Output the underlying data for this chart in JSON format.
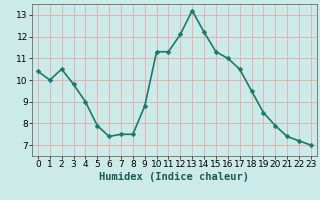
{
  "x": [
    0,
    1,
    2,
    3,
    4,
    5,
    6,
    7,
    8,
    9,
    10,
    11,
    12,
    13,
    14,
    15,
    16,
    17,
    18,
    19,
    20,
    21,
    22,
    23
  ],
  "y": [
    10.4,
    10.0,
    10.5,
    9.8,
    9.0,
    7.9,
    7.4,
    7.5,
    7.5,
    8.8,
    11.3,
    11.3,
    12.1,
    13.2,
    12.2,
    11.3,
    11.0,
    10.5,
    9.5,
    8.5,
    7.9,
    7.4,
    7.2,
    7.0
  ],
  "line_color": "#1a7a6e",
  "marker_color": "#1a7a6e",
  "bg_color": "#cceae7",
  "grid_color": "#e8a0a0",
  "xlabel": "Humidex (Indice chaleur)",
  "xlabel_fontsize": 7.5,
  "xlim": [
    -0.5,
    23.5
  ],
  "ylim": [
    6.5,
    13.5
  ],
  "yticks": [
    7,
    8,
    9,
    10,
    11,
    12,
    13
  ],
  "xticks": [
    0,
    1,
    2,
    3,
    4,
    5,
    6,
    7,
    8,
    9,
    10,
    11,
    12,
    13,
    14,
    15,
    16,
    17,
    18,
    19,
    20,
    21,
    22,
    23
  ],
  "tick_fontsize": 6.5,
  "linewidth": 1.2,
  "markersize": 2.5
}
